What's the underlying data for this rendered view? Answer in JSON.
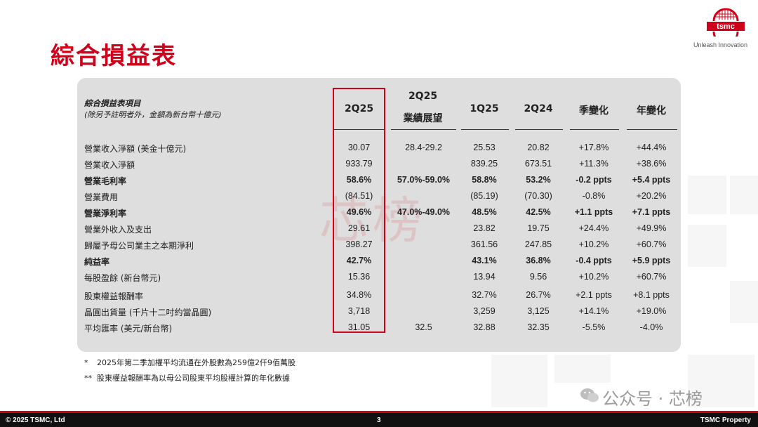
{
  "page": {
    "title": "綜合損益表",
    "brand": "tsmc",
    "tagline": "Unleash Innovation",
    "watermark": "芯榜"
  },
  "table": {
    "header_item": "綜合損益表項目",
    "header_sub": "(除另予註明者外，金額為新台幣十億元)",
    "columns": [
      "2Q25",
      "2Q25\n業績展望",
      "1Q25",
      "2Q24",
      "季變化",
      "年變化"
    ],
    "columns_display": {
      "c0": "2Q25",
      "c1a": "2Q25",
      "c1b": "業績展望",
      "c2": "1Q25",
      "c3": "2Q24",
      "c4": "季變化",
      "c5": "年變化"
    },
    "rows": [
      {
        "label": "營業收入淨額 (美金十億元)",
        "bold": false,
        "v": [
          "30.07",
          "28.4-29.2",
          "25.53",
          "20.82",
          "+17.8%",
          "+44.4%"
        ]
      },
      {
        "label": "營業收入淨額",
        "bold": false,
        "v": [
          "933.79",
          "",
          "839.25",
          "673.51",
          "+11.3%",
          "+38.6%"
        ]
      },
      {
        "label": "營業毛利率",
        "bold": true,
        "v": [
          "58.6%",
          "57.0%-59.0%",
          "58.8%",
          "53.2%",
          "-0.2 ppts",
          "+5.4 ppts"
        ]
      },
      {
        "label": "營業費用",
        "bold": false,
        "v": [
          "(84.51)",
          "",
          "(85.19)",
          "(70.30)",
          "-0.8%",
          "+20.2%"
        ]
      },
      {
        "label": "營業淨利率",
        "bold": true,
        "v": [
          "49.6%",
          "47.0%-49.0%",
          "48.5%",
          "42.5%",
          "+1.1 ppts",
          "+7.1 ppts"
        ]
      },
      {
        "label": "營業外收入及支出",
        "bold": false,
        "v": [
          "29.61",
          "",
          "23.82",
          "19.75",
          "+24.4%",
          "+49.9%"
        ]
      },
      {
        "label": "歸屬予母公司業主之本期淨利",
        "bold": false,
        "v": [
          "398.27",
          "",
          "361.56",
          "247.85",
          "+10.2%",
          "+60.7%"
        ]
      },
      {
        "label": "純益率",
        "bold": true,
        "v": [
          "42.7%",
          "",
          "43.1%",
          "36.8%",
          "-0.4 ppts",
          "+5.9 ppts"
        ]
      },
      {
        "label": "每股盈餘 (新台幣元)",
        "bold": false,
        "v": [
          "15.36",
          "",
          "13.94",
          "9.56",
          "+10.2%",
          "+60.7%"
        ]
      },
      {
        "label": "股東權益報酬率",
        "bold": false,
        "v": [
          "34.8%",
          "",
          "32.7%",
          "26.7%",
          "+2.1 ppts",
          "+8.1 ppts"
        ]
      },
      {
        "label": "晶圓出貨量 (千片十二吋約當晶圓)",
        "bold": false,
        "v": [
          "3,718",
          "",
          "3,259",
          "3,125",
          "+14.1%",
          "+19.0%"
        ]
      },
      {
        "label": "平均匯率 (美元/新台幣)",
        "bold": false,
        "v": [
          "31.05",
          "32.5",
          "32.88",
          "32.35",
          "-5.5%",
          "-4.0%"
        ]
      }
    ]
  },
  "footnotes": [
    {
      "mark": "*",
      "text": "2025年第二季加權平均流通在外股數為259億2仟9佰萬股"
    },
    {
      "mark": "**",
      "text": "股東權益報酬率為以母公司股東平均股權計算的年化數據"
    }
  ],
  "footer": {
    "left": "© 2025 TSMC, Ltd",
    "center": "3",
    "right": "TSMC Property"
  },
  "wechat_watermark": "公众号 · 芯榜",
  "colors": {
    "accent": "#d0021b",
    "panel": "#dedede",
    "footer": "#111111"
  }
}
